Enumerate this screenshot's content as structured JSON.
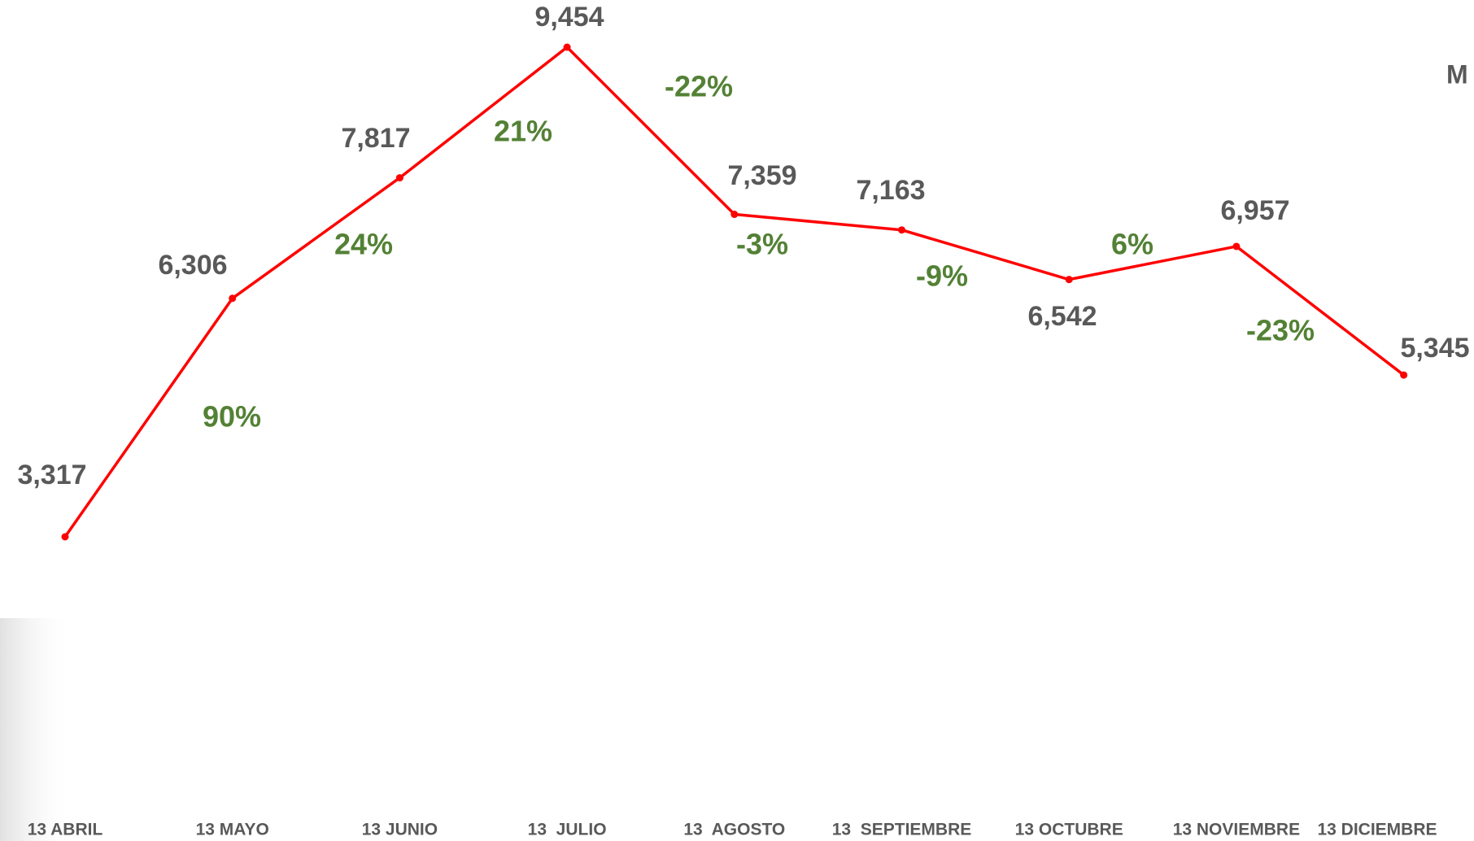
{
  "chart_data": {
    "type": "line",
    "title": "M",
    "categories": [
      "13 ABRIL",
      "13 MAYO",
      "13 JUNIO",
      "13  JULIO",
      "13  AGOSTO",
      "13  SEPTIEMBRE",
      "13 OCTUBRE",
      "13 NOVIEMBRE",
      "13 DICIEMBRE"
    ],
    "values": [
      3317,
      6306,
      7817,
      9454,
      7359,
      7163,
      6542,
      6957,
      5345
    ],
    "value_labels": [
      "3,317",
      "6,306",
      "7,817",
      "9,454",
      "7,359",
      "7,163",
      "6,542",
      "6,957",
      "5,345"
    ],
    "change_labels": [
      "90%",
      "24%",
      "21%",
      "-22%",
      "-3%",
      "-9%",
      "6%",
      "-23%"
    ],
    "color": "#ff0000"
  }
}
